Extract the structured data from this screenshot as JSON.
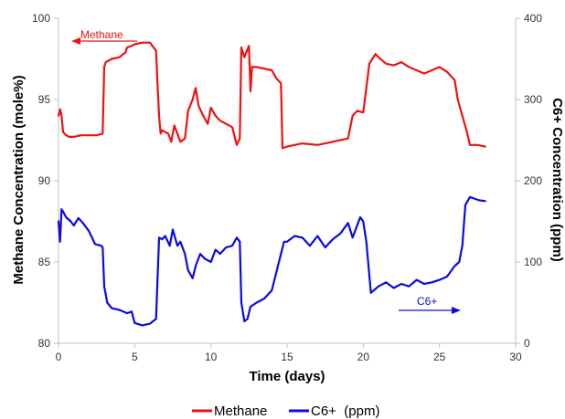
{
  "chart_data": {
    "type": "line",
    "xlabel": "Time (days)",
    "ylabel_left": "Methane Concentration (mole%)",
    "ylabel_right": "C6+ Concentration (ppm)",
    "xlim": [
      0,
      30
    ],
    "ylim_left": [
      80,
      100
    ],
    "ylim_right": [
      0,
      400
    ],
    "x_ticks": [
      "0",
      "5",
      "10",
      "15",
      "20",
      "25",
      "30"
    ],
    "y_ticks_left": [
      "80",
      "85",
      "90",
      "95",
      "100"
    ],
    "y_ticks_right": [
      "0",
      "100",
      "200",
      "300",
      "400"
    ],
    "grid": false,
    "legend_position": "bottom",
    "series": [
      {
        "name": "Methane",
        "axis": "left",
        "color": "#ee1111",
        "x": [
          0,
          0.1,
          0.2,
          0.3,
          0.5,
          0.7,
          1.0,
          1.5,
          2.0,
          2.5,
          2.9,
          3.0,
          3.1,
          3.5,
          4.0,
          4.4,
          4.5,
          4.8,
          5.0,
          5.5,
          6.0,
          6.4,
          6.5,
          6.6,
          6.7,
          6.8,
          7.0,
          7.2,
          7.4,
          7.6,
          8.0,
          8.3,
          8.5,
          8.8,
          9.0,
          9.2,
          9.5,
          9.8,
          10.0,
          10.3,
          10.6,
          11.0,
          11.4,
          11.7,
          11.9,
          12.0,
          12.2,
          12.5,
          12.6,
          12.7,
          13.0,
          14.0,
          14.3,
          14.6,
          14.7,
          15.0,
          16.0,
          17.0,
          18.0,
          19.0,
          19.3,
          19.6,
          20.0,
          20.4,
          20.8,
          21.0,
          21.5,
          22.0,
          22.5,
          23.0,
          23.5,
          24.0,
          24.5,
          25.0,
          25.5,
          26.0,
          26.2,
          26.5,
          26.8,
          27.0,
          27.5,
          28.0
        ],
        "y": [
          94.0,
          94.4,
          94.0,
          93.0,
          92.8,
          92.7,
          92.7,
          92.8,
          92.8,
          92.8,
          92.9,
          97.0,
          97.3,
          97.5,
          97.6,
          97.9,
          98.2,
          98.3,
          98.4,
          98.5,
          98.5,
          98.0,
          96.0,
          94.0,
          92.9,
          93.1,
          93.0,
          92.9,
          92.4,
          93.4,
          92.4,
          92.6,
          94.3,
          95.0,
          95.7,
          94.6,
          94.0,
          93.5,
          94.5,
          94.0,
          93.7,
          93.5,
          93.3,
          92.2,
          92.6,
          98.2,
          97.6,
          98.3,
          95.5,
          97.0,
          97.0,
          96.8,
          96.3,
          96.0,
          92.0,
          92.1,
          92.3,
          92.2,
          92.4,
          92.6,
          94.0,
          94.3,
          94.2,
          97.2,
          97.8,
          97.6,
          97.2,
          97.1,
          97.3,
          97.0,
          96.8,
          96.6,
          96.8,
          97.0,
          96.7,
          96.2,
          95.0,
          94.0,
          93.0,
          92.2,
          92.2,
          92.1
        ]
      },
      {
        "name": "C6+  (ppm)",
        "axis": "right",
        "color": "#0a0ae6",
        "x": [
          0,
          0.1,
          0.2,
          0.3,
          0.5,
          0.8,
          1.0,
          1.3,
          1.6,
          2.0,
          2.4,
          2.8,
          2.9,
          3.0,
          3.2,
          3.5,
          4.0,
          4.5,
          4.8,
          5.0,
          5.5,
          6.0,
          6.4,
          6.6,
          6.8,
          7.0,
          7.3,
          7.5,
          7.8,
          8.0,
          8.3,
          8.5,
          8.8,
          9.0,
          9.3,
          9.6,
          10.0,
          10.3,
          10.6,
          11.0,
          11.4,
          11.7,
          11.9,
          12.0,
          12.2,
          12.4,
          12.6,
          13.0,
          13.5,
          14.0,
          14.4,
          14.8,
          15.0,
          15.5,
          16.0,
          16.5,
          17.0,
          17.5,
          18.0,
          18.5,
          19.0,
          19.3,
          19.5,
          19.8,
          20.0,
          20.2,
          20.5,
          21.0,
          21.5,
          22.0,
          22.5,
          23.0,
          23.5,
          24.0,
          24.5,
          25.0,
          25.5,
          26.0,
          26.3,
          26.5,
          26.7,
          27.0,
          27.3,
          27.6,
          28.0
        ],
        "y": [
          150,
          125,
          165,
          162,
          155,
          150,
          145,
          154,
          148,
          138,
          122,
          120,
          118,
          70,
          50,
          43,
          41,
          37,
          39,
          25,
          22,
          24,
          30,
          130,
          128,
          132,
          120,
          140,
          120,
          125,
          110,
          90,
          80,
          95,
          110,
          104,
          100,
          115,
          110,
          118,
          120,
          130,
          125,
          50,
          27,
          30,
          45,
          50,
          55,
          65,
          95,
          125,
          125,
          132,
          130,
          120,
          132,
          118,
          128,
          135,
          148,
          130,
          140,
          155,
          150,
          125,
          62,
          70,
          75,
          68,
          73,
          70,
          78,
          73,
          75,
          78,
          82,
          95,
          100,
          120,
          170,
          180,
          178,
          176,
          175
        ]
      }
    ],
    "annotations": [
      {
        "text": "Methane",
        "color": "#ee1111",
        "direction": "left"
      },
      {
        "text": "C6+",
        "color": "#0a0ae6",
        "direction": "right"
      }
    ]
  }
}
